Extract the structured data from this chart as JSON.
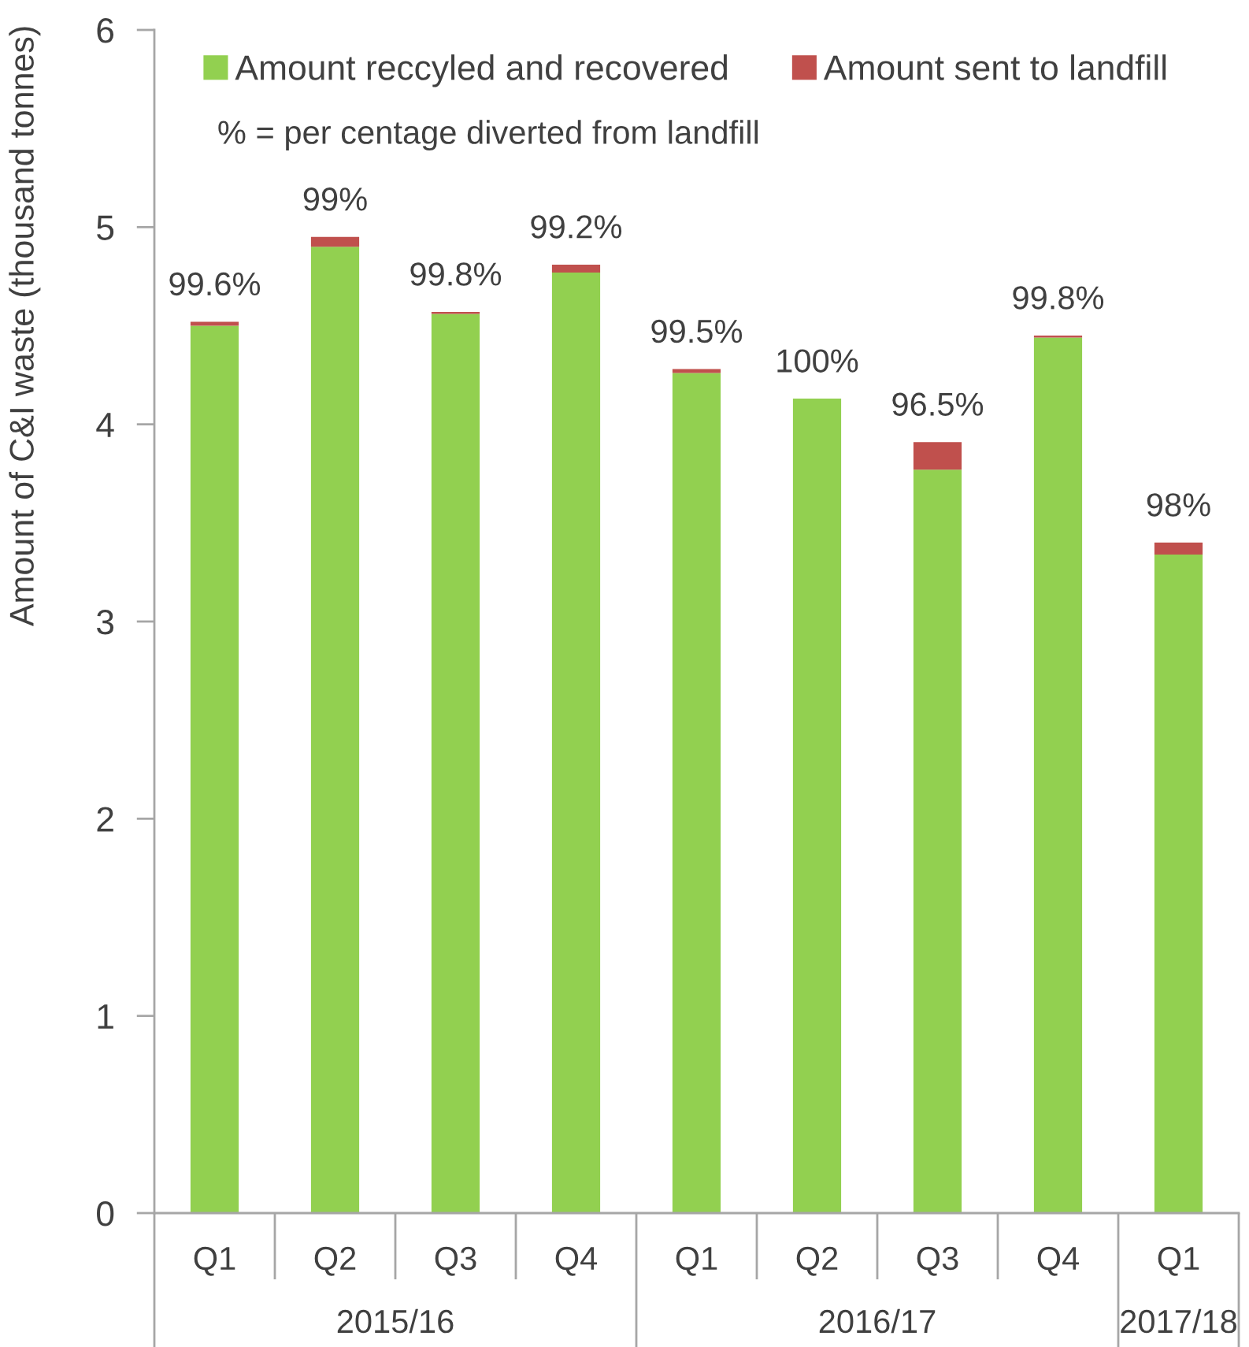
{
  "chart_data": {
    "type": "bar",
    "stacked": true,
    "ylabel": "Amount of C&I waste (thousand tonnes)",
    "categories": [
      "Q1",
      "Q2",
      "Q3",
      "Q4",
      "Q1",
      "Q2",
      "Q3",
      "Q4",
      "Q1"
    ],
    "series": [
      {
        "name": "Amount reccyled and recovered",
        "color": "#92d050",
        "values": [
          4.5,
          4.9,
          4.56,
          4.77,
          4.26,
          4.13,
          3.77,
          4.44,
          3.34
        ]
      },
      {
        "name": "Amount sent to landfill",
        "color": "#c0504d",
        "values": [
          0.02,
          0.05,
          0.01,
          0.04,
          0.02,
          0.0,
          0.14,
          0.01,
          0.06
        ]
      }
    ],
    "annotations": [
      "% = per centage diverted from landfill",
      "99.6%",
      "99%",
      "99.8%",
      "99.2%",
      "99.5%",
      "100%",
      "96.5%",
      "99.8%",
      "98%",
      "2015/16",
      "2016/17",
      "2017/18"
    ],
    "ylim": [
      0,
      6
    ],
    "yticks": [
      0,
      1,
      2,
      3,
      4,
      5,
      6
    ],
    "legend": "top",
    "grid": false
  }
}
